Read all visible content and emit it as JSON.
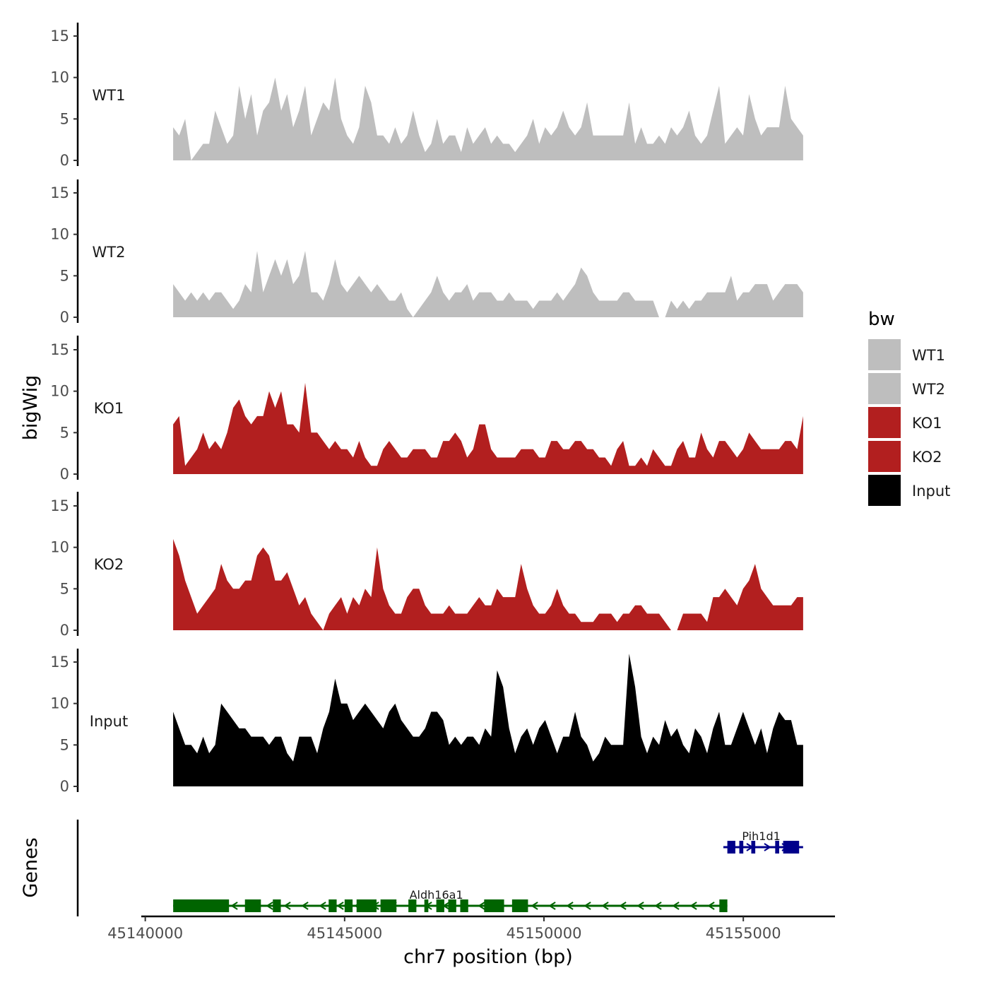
{
  "chart_data": {
    "type": "area",
    "title": "",
    "ylabel": "bigWig",
    "xlabel": "chr7 position (bp)",
    "xlim": [
      45139900,
      45157300
    ],
    "ylim": [
      0,
      16
    ],
    "x_ticks": [
      {
        "value": 45140000,
        "label": "45140000"
      },
      {
        "value": 45145000,
        "label": "45145000"
      },
      {
        "value": 45150000,
        "label": "45150000"
      },
      {
        "value": 45155000,
        "label": "45155000"
      }
    ],
    "y_ticks": [
      {
        "value": 0,
        "label": "0"
      },
      {
        "value": 5,
        "label": "5"
      },
      {
        "value": 10,
        "label": "10"
      },
      {
        "value": 15,
        "label": "15"
      }
    ],
    "x_start": 45140700,
    "x_end": 45156500,
    "tracks": [
      {
        "name": "WT1",
        "color": "#bebebe",
        "values": [
          4,
          3,
          5,
          0,
          1,
          2,
          2,
          6,
          4,
          2,
          3,
          9,
          5,
          8,
          3,
          6,
          7,
          10,
          6,
          8,
          4,
          6,
          9,
          3,
          5,
          7,
          6,
          10,
          5,
          3,
          2,
          4,
          9,
          7,
          3,
          3,
          2,
          4,
          2,
          3,
          6,
          3,
          1,
          2,
          5,
          2,
          3,
          3,
          1,
          4,
          2,
          3,
          4,
          2,
          3,
          2,
          2,
          1,
          2,
          3,
          5,
          2,
          4,
          3,
          4,
          6,
          4,
          3,
          4,
          7,
          3,
          3,
          3,
          3,
          3,
          3,
          7,
          2,
          4,
          2,
          2,
          3,
          2,
          4,
          3,
          4,
          6,
          3,
          2,
          3,
          6,
          9,
          2,
          3,
          4,
          3,
          8,
          5,
          3,
          4,
          4,
          4,
          9,
          5,
          4,
          3
        ]
      },
      {
        "name": "WT2",
        "color": "#bebebe",
        "values": [
          4,
          3,
          2,
          3,
          2,
          3,
          2,
          3,
          3,
          2,
          1,
          2,
          4,
          3,
          8,
          3,
          5,
          7,
          5,
          7,
          4,
          5,
          8,
          3,
          3,
          2,
          4,
          7,
          4,
          3,
          4,
          5,
          4,
          3,
          4,
          3,
          2,
          2,
          3,
          1,
          0,
          1,
          2,
          3,
          5,
          3,
          2,
          3,
          3,
          4,
          2,
          3,
          3,
          3,
          2,
          2,
          3,
          2,
          2,
          2,
          1,
          2,
          2,
          2,
          3,
          2,
          3,
          4,
          6,
          5,
          3,
          2,
          2,
          2,
          2,
          3,
          3,
          2,
          2,
          2,
          2,
          0,
          0,
          2,
          1,
          2,
          1,
          2,
          2,
          3,
          3,
          3,
          3,
          5,
          2,
          3,
          3,
          4,
          4,
          4,
          2,
          3,
          4,
          4,
          4,
          3
        ]
      },
      {
        "name": "KO1",
        "color": "#b21f1f",
        "values": [
          6,
          7,
          1,
          2,
          3,
          5,
          3,
          4,
          3,
          5,
          8,
          9,
          7,
          6,
          7,
          7,
          10,
          8,
          10,
          6,
          6,
          5,
          11,
          5,
          5,
          4,
          3,
          4,
          3,
          3,
          2,
          4,
          2,
          1,
          1,
          3,
          4,
          3,
          2,
          2,
          3,
          3,
          3,
          2,
          2,
          4,
          4,
          5,
          4,
          2,
          3,
          6,
          6,
          3,
          2,
          2,
          2,
          2,
          3,
          3,
          3,
          2,
          2,
          4,
          4,
          3,
          3,
          4,
          4,
          3,
          3,
          2,
          2,
          1,
          3,
          4,
          1,
          1,
          2,
          1,
          3,
          2,
          1,
          1,
          3,
          4,
          2,
          2,
          5,
          3,
          2,
          4,
          4,
          3,
          2,
          3,
          5,
          4,
          3,
          3,
          3,
          3,
          4,
          4,
          3,
          7
        ]
      },
      {
        "name": "KO2",
        "color": "#b21f1f",
        "values": [
          11,
          9,
          6,
          4,
          2,
          3,
          4,
          5,
          8,
          6,
          5,
          5,
          6,
          6,
          9,
          10,
          9,
          6,
          6,
          7,
          5,
          3,
          4,
          2,
          1,
          0,
          2,
          3,
          4,
          2,
          4,
          3,
          5,
          4,
          10,
          5,
          3,
          2,
          2,
          4,
          5,
          5,
          3,
          2,
          2,
          2,
          3,
          2,
          2,
          2,
          3,
          4,
          3,
          3,
          5,
          4,
          4,
          4,
          8,
          5,
          3,
          2,
          2,
          3,
          5,
          3,
          2,
          2,
          1,
          1,
          1,
          2,
          2,
          2,
          1,
          2,
          2,
          3,
          3,
          2,
          2,
          2,
          1,
          0,
          0,
          2,
          2,
          2,
          2,
          1,
          4,
          4,
          5,
          4,
          3,
          5,
          6,
          8,
          5,
          4,
          3,
          3,
          3,
          3,
          4,
          4
        ]
      },
      {
        "name": "Input",
        "color": "#000000",
        "values": [
          9,
          7,
          5,
          5,
          4,
          6,
          4,
          5,
          10,
          9,
          8,
          7,
          7,
          6,
          6,
          6,
          5,
          6,
          6,
          4,
          3,
          6,
          6,
          6,
          4,
          7,
          9,
          13,
          10,
          10,
          8,
          9,
          10,
          9,
          8,
          7,
          9,
          10,
          8,
          7,
          6,
          6,
          7,
          9,
          9,
          8,
          5,
          6,
          5,
          6,
          6,
          5,
          7,
          6,
          14,
          12,
          7,
          4,
          6,
          7,
          5,
          7,
          8,
          6,
          4,
          6,
          6,
          9,
          6,
          5,
          3,
          4,
          6,
          5,
          5,
          5,
          16,
          12,
          6,
          4,
          6,
          5,
          8,
          6,
          7,
          5,
          4,
          7,
          6,
          4,
          7,
          9,
          5,
          5,
          7,
          9,
          7,
          5,
          7,
          4,
          7,
          9,
          8,
          8,
          5,
          5
        ]
      }
    ],
    "legend": {
      "title": "bw",
      "position": "right",
      "entries": [
        {
          "label": "WT1",
          "color": "#bebebe"
        },
        {
          "label": "WT2",
          "color": "#bebebe"
        },
        {
          "label": "KO1",
          "color": "#b21f1f"
        },
        {
          "label": "KO2",
          "color": "#b21f1f"
        },
        {
          "label": "Input",
          "color": "#000000"
        }
      ]
    },
    "genes": {
      "panel_label": "Genes",
      "items": [
        {
          "name": "Aldh16a1",
          "strand": "-",
          "color": "#006400",
          "start": 45140700,
          "end": 45154600,
          "exons": [
            [
              45140700,
              45142100
            ],
            [
              45142500,
              45142900
            ],
            [
              45143200,
              45143400
            ],
            [
              45144600,
              45144800
            ],
            [
              45145000,
              45145200
            ],
            [
              45145300,
              45145800
            ],
            [
              45145900,
              45146300
            ],
            [
              45146600,
              45146800
            ],
            [
              45147000,
              45147100
            ],
            [
              45147300,
              45147500
            ],
            [
              45147600,
              45147800
            ],
            [
              45147900,
              45148100
            ],
            [
              45148500,
              45149000
            ],
            [
              45149200,
              45149600
            ],
            [
              45154400,
              45154600
            ]
          ]
        },
        {
          "name": "Pih1d1",
          "strand": "+",
          "color": "#00008b",
          "start": 45154500,
          "end": 45156500,
          "exons": [
            [
              45154600,
              45154800
            ],
            [
              45154900,
              45155000
            ],
            [
              45155200,
              45155300
            ],
            [
              45155800,
              45155900
            ],
            [
              45156000,
              45156400
            ]
          ]
        }
      ]
    }
  }
}
